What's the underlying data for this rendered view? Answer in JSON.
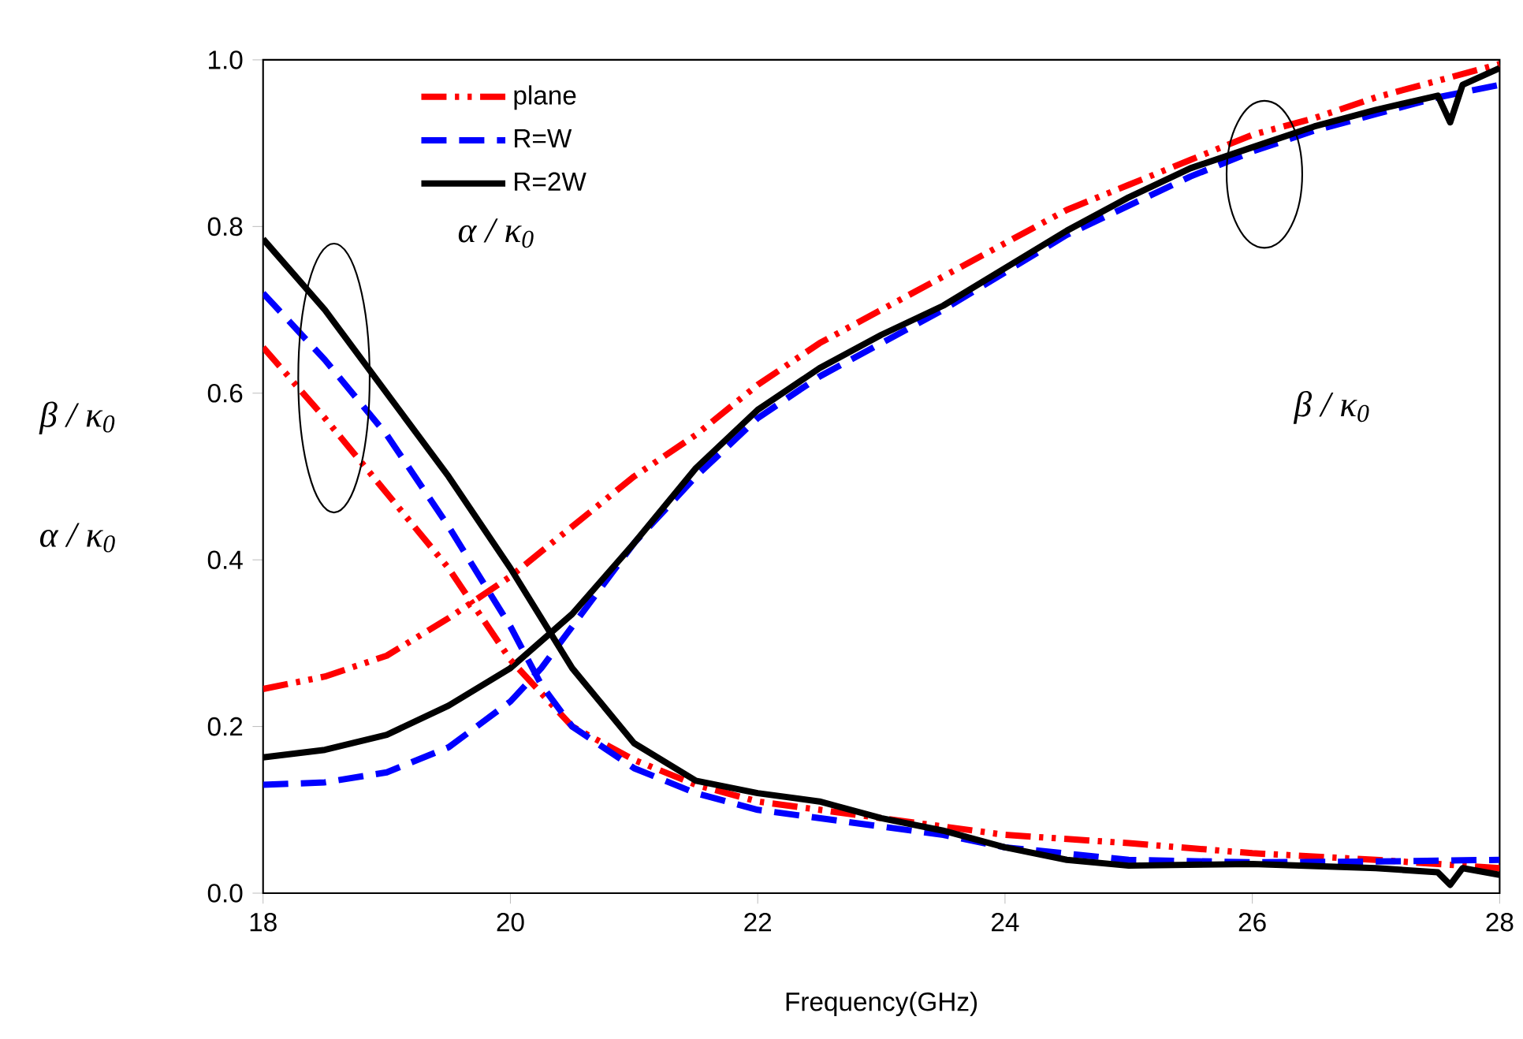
{
  "chart_data": {
    "type": "line",
    "xlabel": "Frequency(GHz)",
    "ylabel": "β / κ$_{0}$",
    "annotations": [
      "α / κ$_{0}$",
      "β / κ$_{0}$",
      "α / κ$_{0}$"
    ],
    "xlim": [
      18,
      28
    ],
    "xticks": [
      18,
      20,
      22,
      24,
      26,
      28
    ],
    "ylim": [
      0,
      1
    ],
    "yticks": [
      {
        "value": 0,
        "label": "0.0"
      },
      {
        "value": 0.2,
        "label": "0.2"
      },
      {
        "value": 0.4,
        "label": "0.4"
      },
      {
        "value": 0.6,
        "label": "0.6"
      },
      {
        "value": 0.8,
        "label": "0.8"
      },
      {
        "value": 1,
        "label": "1.0"
      }
    ],
    "grid": false,
    "legend": "top left",
    "marker": "none",
    "series": [
      {
        "name": "plane",
        "color": "#ff0000",
        "line_style": "dashdotdotted",
        "x": [
          18,
          18.5,
          19,
          19.5,
          20,
          20.5,
          21,
          21.5,
          22,
          22.5,
          23,
          23.5,
          24,
          24.5,
          25,
          25.5,
          26,
          26.5,
          27,
          27.5,
          28
        ],
        "values": [
          0.245,
          0.26,
          0.285,
          0.33,
          0.38,
          0.44,
          0.5,
          0.55,
          0.61,
          0.66,
          0.7,
          0.74,
          0.78,
          0.82,
          0.85,
          0.88,
          0.91,
          0.93,
          0.955,
          0.975,
          0.995
        ]
      },
      {
        "name": "R=W",
        "color": "#0000ff",
        "line_style": "dashed",
        "x": [
          18,
          18.5,
          19,
          19.5,
          20,
          20.25,
          20.5,
          21,
          21.5,
          22,
          22.5,
          23,
          23.5,
          24,
          24.5,
          25,
          25.5,
          26,
          26.5,
          27,
          27.5,
          28
        ],
        "values": [
          0.13,
          0.133,
          0.145,
          0.175,
          0.23,
          0.27,
          0.32,
          0.42,
          0.5,
          0.57,
          0.62,
          0.66,
          0.7,
          0.745,
          0.79,
          0.825,
          0.86,
          0.89,
          0.915,
          0.935,
          0.955,
          0.97
        ]
      },
      {
        "name": "R=2W",
        "color": "#000000",
        "line_style": "solid",
        "x": [
          18,
          18.5,
          19,
          19.5,
          20,
          20.5,
          21,
          21.5,
          22,
          22.5,
          23,
          23.5,
          24,
          24.5,
          25,
          25.5,
          26,
          26.5,
          27,
          27.5,
          27.6,
          27.7,
          28
        ],
        "values": [
          0.163,
          0.172,
          0.19,
          0.225,
          0.27,
          0.335,
          0.42,
          0.51,
          0.58,
          0.63,
          0.67,
          0.705,
          0.75,
          0.795,
          0.835,
          0.87,
          0.895,
          0.92,
          0.94,
          0.957,
          0.925,
          0.97,
          0.99
        ]
      },
      {
        "color": "#ff0000",
        "line_style": "dashdotdotted",
        "x": [
          18,
          18.5,
          19,
          19.5,
          20,
          20.5,
          21,
          21.5,
          22,
          22.5,
          23,
          23.5,
          24,
          25,
          26,
          27,
          28
        ],
        "values": [
          0.655,
          0.57,
          0.48,
          0.39,
          0.28,
          0.2,
          0.16,
          0.13,
          0.11,
          0.1,
          0.09,
          0.08,
          0.07,
          0.06,
          0.048,
          0.04,
          0.03
        ]
      },
      {
        "color": "#0000ff",
        "line_style": "dashed",
        "x": [
          18,
          18.5,
          19,
          19.5,
          20,
          20.25,
          20.5,
          21,
          21.5,
          22,
          22.5,
          23,
          23.5,
          24,
          25,
          26,
          27,
          28
        ],
        "values": [
          0.72,
          0.64,
          0.55,
          0.44,
          0.32,
          0.25,
          0.2,
          0.15,
          0.12,
          0.1,
          0.09,
          0.08,
          0.07,
          0.055,
          0.04,
          0.037,
          0.038,
          0.04
        ]
      },
      {
        "color": "#000000",
        "line_style": "solid",
        "x": [
          18,
          18.5,
          19,
          19.5,
          20,
          20.5,
          21,
          21.5,
          22,
          22.5,
          23,
          23.5,
          24,
          24.5,
          25,
          26,
          27,
          27.5,
          27.6,
          27.7,
          28
        ],
        "values": [
          0.785,
          0.7,
          0.6,
          0.5,
          0.39,
          0.27,
          0.18,
          0.135,
          0.12,
          0.11,
          0.09,
          0.075,
          0.055,
          0.04,
          0.033,
          0.035,
          0.03,
          0.025,
          0.01,
          0.03,
          0.022
        ]
      }
    ]
  }
}
